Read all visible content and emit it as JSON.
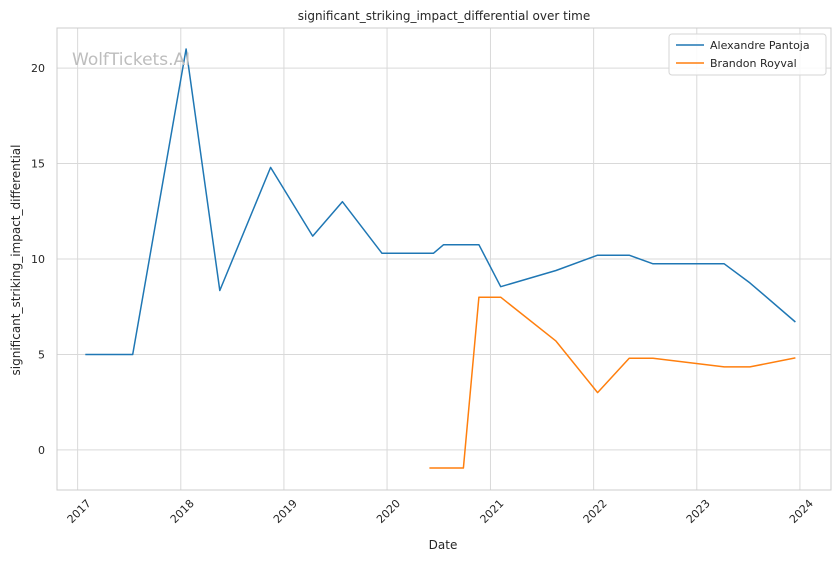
{
  "chart_data": {
    "type": "line",
    "title": "significant_striking_impact_differential over time",
    "xlabel": "Date",
    "ylabel": "significant_striking_impact_differential",
    "watermark": "WolfTickets.AI",
    "x_ticks": [
      "2017",
      "2018",
      "2019",
      "2020",
      "2021",
      "2022",
      "2023",
      "2024"
    ],
    "y_ticks": [
      0,
      5,
      10,
      15,
      20
    ],
    "xlim": [
      "2016-10-20",
      "2024-04-20"
    ],
    "ylim": [
      -2.1,
      22.1
    ],
    "grid": true,
    "legend_position": "top-right",
    "series": [
      {
        "name": "Alexandre Pantoja",
        "color": "#1f77b4",
        "points": [
          [
            "2017-01-28",
            5.0
          ],
          [
            "2017-07-15",
            5.0
          ],
          [
            "2018-01-20",
            21.0
          ],
          [
            "2018-05-19",
            8.35
          ],
          [
            "2018-11-15",
            14.8
          ],
          [
            "2019-04-13",
            11.2
          ],
          [
            "2019-07-27",
            13.0
          ],
          [
            "2019-12-14",
            10.3
          ],
          [
            "2020-06-13",
            10.3
          ],
          [
            "2020-07-19",
            10.75
          ],
          [
            "2020-11-21",
            10.75
          ],
          [
            "2021-02-06",
            8.55
          ],
          [
            "2021-08-21",
            9.4
          ],
          [
            "2022-01-15",
            10.2
          ],
          [
            "2022-05-07",
            10.2
          ],
          [
            "2022-07-30",
            9.75
          ],
          [
            "2023-04-08",
            9.75
          ],
          [
            "2023-07-08",
            8.75
          ],
          [
            "2023-12-16",
            6.7
          ]
        ]
      },
      {
        "name": "Brandon Royval",
        "color": "#ff7f0e",
        "points": [
          [
            "2020-05-30",
            -0.95
          ],
          [
            "2020-09-27",
            -0.95
          ],
          [
            "2020-11-21",
            8.0
          ],
          [
            "2021-02-06",
            8.0
          ],
          [
            "2021-08-21",
            5.7
          ],
          [
            "2022-01-15",
            3.0
          ],
          [
            "2022-05-07",
            4.8
          ],
          [
            "2022-07-30",
            4.8
          ],
          [
            "2023-04-08",
            4.35
          ],
          [
            "2023-07-08",
            4.35
          ],
          [
            "2023-12-16",
            4.82
          ]
        ]
      }
    ]
  }
}
